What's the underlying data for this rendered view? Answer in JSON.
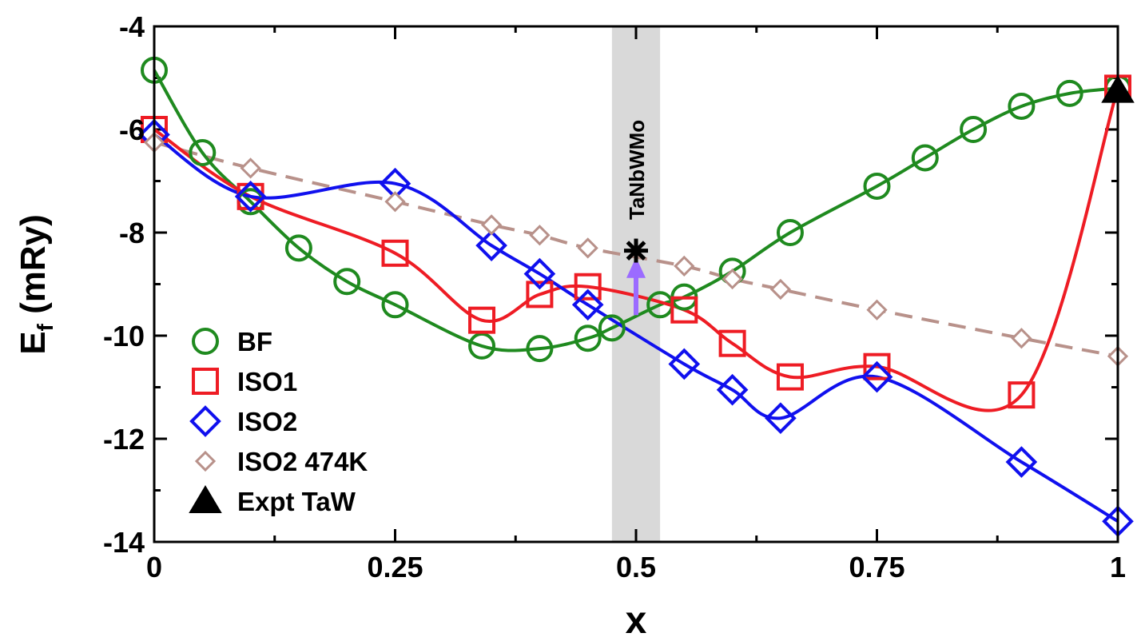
{
  "chart_data": {
    "type": "line",
    "xlabel": "x",
    "ylabel_main": "E",
    "ylabel_sub": "f",
    "ylabel_unit": " (mRy)",
    "xlim": [
      0,
      1
    ],
    "ylim": [
      -14,
      -4
    ],
    "xticks": [
      0,
      0.25,
      0.5,
      0.75,
      1
    ],
    "xtick_labels": [
      "0",
      "0.25",
      "0.5",
      "0.75",
      "1"
    ],
    "yticks": [
      -14,
      -12,
      -10,
      -8,
      -6,
      -4
    ],
    "ytick_labels": [
      "-14",
      "-12",
      "-10",
      "-8",
      "-6",
      "-4"
    ],
    "highlight_band": [
      0.475,
      0.525
    ],
    "annotation": {
      "text": "TaNbWMo",
      "x": 0.5
    },
    "arrow": {
      "x": 0.5,
      "from": -9.6,
      "to": -8.6,
      "color": "#9b6bff"
    },
    "star": {
      "x": 0.5,
      "y": -8.35
    },
    "legend_position": "bottom-left",
    "series": [
      {
        "name": "BF",
        "color": "#1f8a1f",
        "marker": "circle",
        "line": "solid",
        "x": [
          0,
          0.05,
          0.1,
          0.15,
          0.2,
          0.25,
          0.34,
          0.4,
          0.45,
          0.475,
          0.525,
          0.55,
          0.6,
          0.66,
          0.75,
          0.8,
          0.85,
          0.9,
          0.95,
          1.0
        ],
        "y": [
          -4.85,
          -6.45,
          -7.4,
          -8.3,
          -8.95,
          -9.4,
          -10.2,
          -10.25,
          -10.05,
          -9.85,
          -9.4,
          -9.25,
          -8.75,
          -8.0,
          -7.1,
          -6.55,
          -6.0,
          -5.55,
          -5.3,
          -5.2
        ]
      },
      {
        "name": "ISO1",
        "color": "#ee1c24",
        "marker": "square",
        "line": "solid",
        "x": [
          0,
          0.1,
          0.25,
          0.34,
          0.4,
          0.45,
          0.55,
          0.6,
          0.66,
          0.75,
          0.9,
          1.0
        ],
        "y": [
          -6.0,
          -7.3,
          -8.4,
          -9.7,
          -9.2,
          -9.05,
          -9.5,
          -10.15,
          -10.8,
          -10.6,
          -11.15,
          -5.2
        ]
      },
      {
        "name": "ISO2",
        "color": "#1010ee",
        "marker": "diamond",
        "line": "solid",
        "x": [
          0,
          0.1,
          0.25,
          0.35,
          0.4,
          0.45,
          0.55,
          0.6,
          0.65,
          0.75,
          0.9,
          1.0
        ],
        "y": [
          -6.1,
          -7.3,
          -7.05,
          -8.25,
          -8.8,
          -9.4,
          -10.55,
          -11.05,
          -11.6,
          -10.8,
          -12.45,
          -13.6
        ]
      },
      {
        "name": "ISO2 474K",
        "color": "#b8918a",
        "marker": "diamond-small",
        "line": "dashed",
        "x": [
          0,
          0.1,
          0.25,
          0.35,
          0.4,
          0.45,
          0.55,
          0.6,
          0.65,
          0.75,
          0.9,
          1.0
        ],
        "y": [
          -6.25,
          -6.75,
          -7.4,
          -7.85,
          -8.05,
          -8.3,
          -8.65,
          -8.9,
          -9.1,
          -9.5,
          -10.05,
          -10.4
        ]
      },
      {
        "name": "Expt TaW",
        "color": "#000000",
        "marker": "triangle",
        "line": "none",
        "x": [
          1.0
        ],
        "y": [
          -5.25
        ]
      }
    ]
  }
}
